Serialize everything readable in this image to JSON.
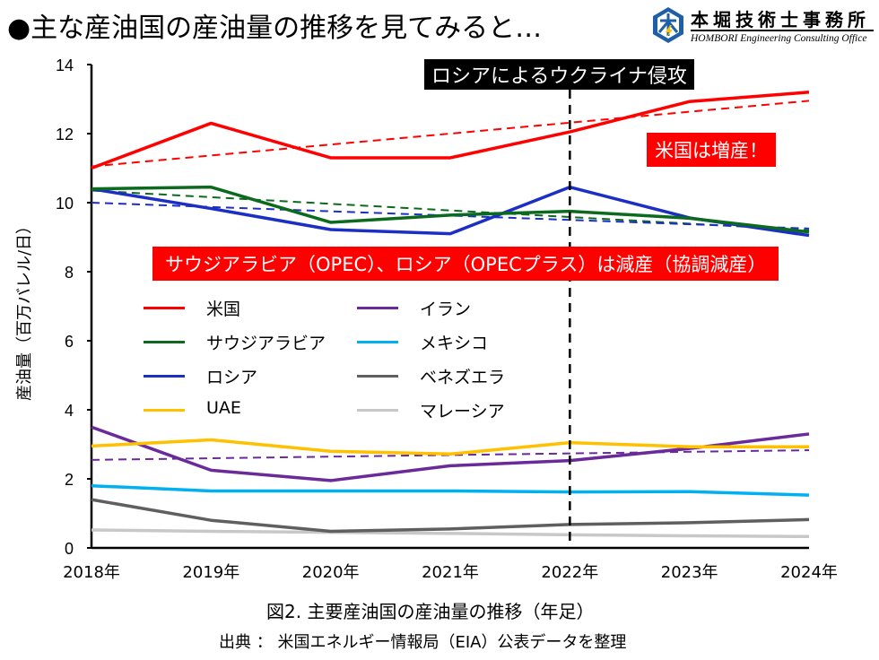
{
  "header": {
    "title": "●主な産油国の産油量の推移を見てみると…",
    "logo": {
      "name_jp": "本堀技術士事務所",
      "name_en": "HOMBORI Engineering Consulting Office",
      "icon": "hombori-hexagon-logo-icon"
    }
  },
  "annotations": {
    "invasion": "ロシアによるウクライナ侵攻",
    "us_increase": "米国は増産！",
    "opec_cut": "サウジアラビア（OPEC）、ロシア（OPECプラス）は減産（協調減産）"
  },
  "caption": "図2. 主要産油国の産油量の推移（年足）",
  "source": "出典 ： 米国エネルギー情報局（EIA）公表データを整理",
  "chart_data": {
    "type": "line",
    "title": "図2. 主要産油国の産油量の推移（年足）",
    "xlabel": "",
    "ylabel": "産油量（百万バレル/日）",
    "x": [
      "2018年",
      "2019年",
      "2020年",
      "2021年",
      "2022年",
      "2023年",
      "2024年"
    ],
    "ylim": [
      0,
      14
    ],
    "yticks": [
      0,
      2,
      4,
      6,
      8,
      10,
      12,
      14
    ],
    "grid": false,
    "legend_position": "center-left",
    "vertical_marker": {
      "x": "2022年",
      "label": "ロシアによるウクライナ侵攻",
      "style": "dashed",
      "color": "#000000"
    },
    "series": [
      {
        "name": "米国",
        "color": "#ff0000",
        "values": [
          11.0,
          12.3,
          11.3,
          11.3,
          12.05,
          12.93,
          13.2
        ],
        "trend": [
          11.05,
          12.95
        ]
      },
      {
        "name": "サウジアラビア",
        "color": "#0b6a1e",
        "values": [
          10.4,
          10.45,
          9.43,
          9.64,
          9.75,
          9.55,
          9.15
        ],
        "trend": [
          10.35,
          9.2
        ]
      },
      {
        "name": "ロシア",
        "color": "#1c2fc4",
        "values": [
          10.4,
          9.83,
          9.22,
          9.1,
          10.45,
          9.56,
          9.05
        ],
        "trend": [
          10.0,
          9.25
        ]
      },
      {
        "name": "UAE",
        "color": "#ffc000",
        "values": [
          2.95,
          3.13,
          2.8,
          2.72,
          3.05,
          2.93,
          2.93
        ]
      },
      {
        "name": "イラン",
        "color": "#6a2a9a",
        "values": [
          3.5,
          2.25,
          1.95,
          2.38,
          2.53,
          2.88,
          3.3
        ],
        "trend": [
          2.55,
          2.83
        ]
      },
      {
        "name": "メキシコ",
        "color": "#00b0f0",
        "values": [
          1.8,
          1.65,
          1.65,
          1.65,
          1.62,
          1.63,
          1.53
        ]
      },
      {
        "name": "ベネズエラ",
        "color": "#5f5f5f",
        "values": [
          1.4,
          0.8,
          0.48,
          0.55,
          0.68,
          0.73,
          0.82
        ]
      },
      {
        "name": "マレーシア",
        "color": "#c8c8c8",
        "values": [
          0.52,
          0.48,
          0.45,
          0.42,
          0.38,
          0.35,
          0.33
        ]
      }
    ]
  }
}
